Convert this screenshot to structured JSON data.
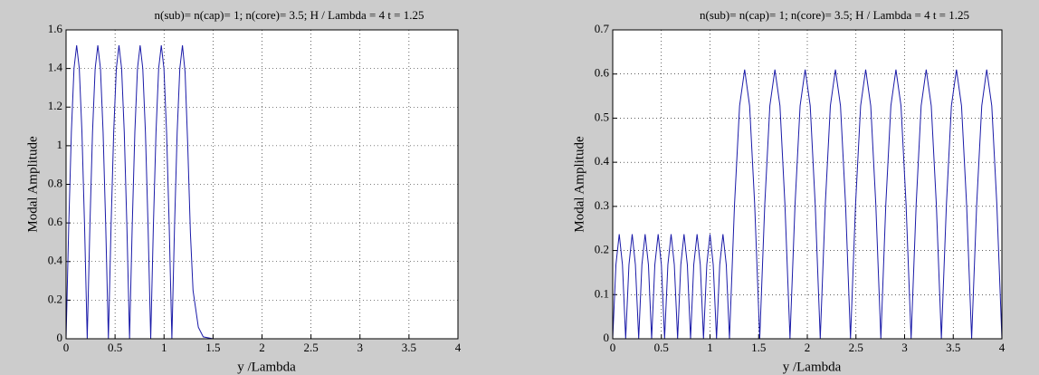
{
  "chart_data": [
    {
      "type": "line",
      "title": "n(sub)= n(cap)= 1; n(core)= 3.5; H / Lambda = 4 t = 1.25",
      "xlabel": "y /Lambda",
      "ylabel": "Modal Amplitude",
      "xlim": [
        0,
        4
      ],
      "xticks": [
        0,
        0.5,
        1,
        1.5,
        2,
        2.5,
        3,
        3.5,
        4
      ],
      "ylim": [
        0,
        1.6
      ],
      "yticks": [
        0,
        0.2,
        0.4,
        0.6,
        0.8,
        1,
        1.2,
        1.4,
        1.6
      ],
      "grid": true,
      "x": [
        0,
        0.027,
        0.054,
        0.081,
        0.108,
        0.135,
        0.162,
        0.189,
        0.216,
        0.243,
        0.27,
        0.297,
        0.324,
        0.351,
        0.378,
        0.405,
        0.432,
        0.459,
        0.486,
        0.513,
        0.54,
        0.567,
        0.594,
        0.621,
        0.648,
        0.675,
        0.702,
        0.729,
        0.756,
        0.783,
        0.81,
        0.837,
        0.864,
        0.891,
        0.918,
        0.945,
        0.972,
        0.999,
        1.026,
        1.053,
        1.08,
        1.107,
        1.134,
        1.161,
        1.188,
        1.215,
        1.242,
        1.269,
        1.296,
        1.35,
        1.4,
        1.5,
        4
      ],
      "series": [
        {
          "color": "#1a1aa8",
          "values": [
            0,
            0.58,
            1.07,
            1.4,
            1.52,
            1.4,
            1.07,
            0.58,
            0,
            0.58,
            1.07,
            1.4,
            1.52,
            1.4,
            1.07,
            0.58,
            0,
            0.58,
            1.07,
            1.4,
            1.52,
            1.4,
            1.07,
            0.58,
            0,
            0.58,
            1.07,
            1.4,
            1.52,
            1.4,
            1.07,
            0.58,
            0,
            0.58,
            1.07,
            1.4,
            1.52,
            1.4,
            1.07,
            0.58,
            0,
            0.58,
            1.07,
            1.4,
            1.52,
            1.38,
            1.0,
            0.55,
            0.25,
            0.06,
            0.01,
            0,
            0
          ]
        }
      ]
    },
    {
      "type": "line",
      "title": "n(sub)= n(cap)= 1; n(core)= 3.5; H / Lambda = 4 t = 1.25",
      "xlabel": "y /Lambda",
      "ylabel": "Modal Amplitude",
      "xlim": [
        0,
        4
      ],
      "xticks": [
        0,
        0.5,
        1,
        1.5,
        2,
        2.5,
        3,
        3.5,
        4
      ],
      "ylim": [
        0,
        0.7
      ],
      "yticks": [
        0,
        0.1,
        0.2,
        0.3,
        0.4,
        0.5,
        0.6,
        0.7
      ],
      "grid": true,
      "x": [
        0,
        0.033,
        0.067,
        0.1,
        0.133,
        0.167,
        0.2,
        0.233,
        0.267,
        0.3,
        0.333,
        0.367,
        0.4,
        0.433,
        0.467,
        0.5,
        0.533,
        0.567,
        0.6,
        0.633,
        0.667,
        0.7,
        0.733,
        0.767,
        0.8,
        0.833,
        0.867,
        0.9,
        0.933,
        0.967,
        1,
        1.033,
        1.067,
        1.1,
        1.133,
        1.167,
        1.2,
        1.252,
        1.304,
        1.356,
        1.407,
        1.459,
        1.511,
        1.563,
        1.615,
        1.667,
        1.719,
        1.77,
        1.822,
        1.874,
        1.926,
        1.978,
        2.03,
        2.081,
        2.133,
        2.185,
        2.237,
        2.289,
        2.341,
        2.393,
        2.444,
        2.496,
        2.548,
        2.6,
        2.652,
        2.704,
        2.756,
        2.807,
        2.859,
        2.911,
        2.963,
        3.015,
        3.067,
        3.119,
        3.17,
        3.222,
        3.274,
        3.326,
        3.378,
        3.43,
        3.481,
        3.533,
        3.585,
        3.637,
        3.689,
        3.741,
        3.793,
        3.844,
        3.896,
        3.948,
        4
      ],
      "series": [
        {
          "color": "#1a1aa8",
          "values": [
            0,
            0.168,
            0.237,
            0.168,
            0,
            0.168,
            0.237,
            0.168,
            0,
            0.168,
            0.237,
            0.168,
            0,
            0.168,
            0.237,
            0.168,
            0,
            0.168,
            0.237,
            0.168,
            0,
            0.168,
            0.237,
            0.168,
            0,
            0.168,
            0.237,
            0.168,
            0,
            0.168,
            0.237,
            0.168,
            0,
            0.168,
            0.237,
            0.168,
            0,
            0.305,
            0.528,
            0.61,
            0.528,
            0.305,
            0,
            0.305,
            0.528,
            0.61,
            0.528,
            0.305,
            0,
            0.305,
            0.528,
            0.61,
            0.528,
            0.305,
            0,
            0.305,
            0.528,
            0.61,
            0.528,
            0.305,
            0,
            0.305,
            0.528,
            0.61,
            0.528,
            0.305,
            0,
            0.305,
            0.528,
            0.61,
            0.528,
            0.305,
            0,
            0.305,
            0.528,
            0.61,
            0.528,
            0.305,
            0,
            0.305,
            0.528,
            0.61,
            0.528,
            0.305,
            0,
            0.305,
            0.528,
            0.61,
            0.528,
            0.305,
            0
          ]
        }
      ]
    }
  ]
}
